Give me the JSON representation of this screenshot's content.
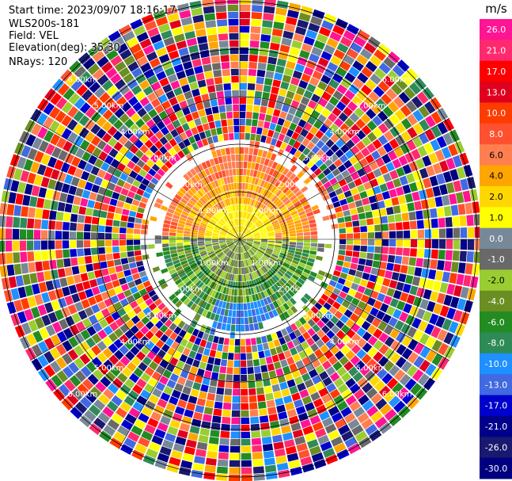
{
  "header": {
    "start_time": "Start time: 2023/09/07 18:16:17",
    "instrument": "WLS200s-181",
    "field": "Field: VEL",
    "elevation": "Elevation(deg): 35.30",
    "nrays": "NRays: 120"
  },
  "chart_data": {
    "type": "ppi",
    "nrays": 120,
    "range_ring_labels": [
      "1.00km",
      "2.00km",
      "3.00km",
      "4.00km",
      "5.00km",
      "6.00km"
    ],
    "colorbar": {
      "unit": "m/s",
      "ticks": [
        "26.0",
        "21.0",
        "17.0",
        "13.0",
        "10.0",
        "8.0",
        "6.0",
        "4.0",
        "2.0",
        "1.0",
        "0.0",
        "-1.0",
        "-2.0",
        "-4.0",
        "-6.0",
        "-8.0",
        "-10.0",
        "-13.0",
        "-17.0",
        "-21.0",
        "-26.0",
        "-30.0"
      ],
      "colors": [
        "#ff1493",
        "#ff2a6d",
        "#ff0000",
        "#e0001e",
        "#ff3c00",
        "#ff5030",
        "#ff7f50",
        "#ffa500",
        "#ffd700",
        "#ffff00",
        "#778899",
        "#696969",
        "#9acd32",
        "#6b8e23",
        "#228b22",
        "#2e8b57",
        "#1e90ff",
        "#4169e1",
        "#0000cd",
        "#00008b",
        "#191970",
        "#000080"
      ]
    }
  }
}
